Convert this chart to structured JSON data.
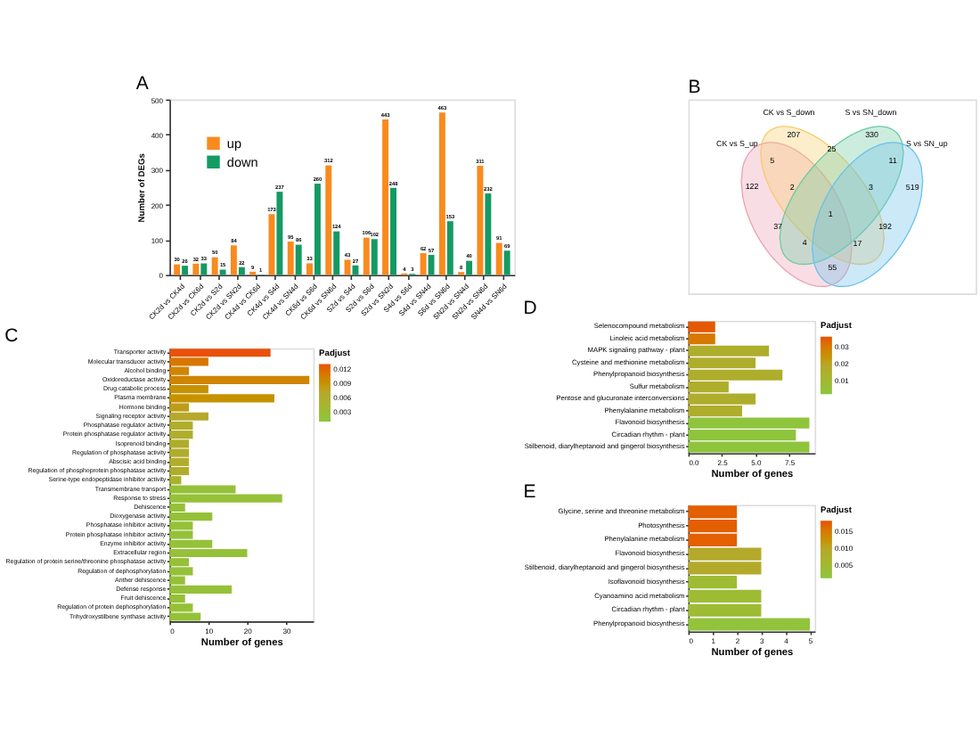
{
  "chart_data": [
    {
      "type": "bar",
      "title": "A",
      "categories": [
        "CK2d vs CK4d",
        "CK2d vs CK6d",
        "CK2d vs S2d",
        "CK2d vs SN2d",
        "CK4d vs CK6d",
        "CK4d vs S4d",
        "CK4d vs SN4d",
        "CK6d vs S6d",
        "CK6d vs SN6d",
        "S2d vs S4d",
        "S2d vs S6d",
        "S2d vs SN2d",
        "S4d vs S6d",
        "S4d vs SN4d",
        "S6d vs SN6d",
        "SN2d vs SN4d",
        "SN2d vs SN6d",
        "SN4d vs SN6d"
      ],
      "series": [
        {
          "name": "up",
          "color": "#f98a1d",
          "values": [
            30,
            32,
            50,
            84,
            9,
            173,
            95,
            33,
            312,
            43,
            106,
            443,
            4,
            62,
            463,
            8,
            311,
            91
          ]
        },
        {
          "name": "down",
          "color": "#149a63",
          "values": [
            26,
            33,
            15,
            22,
            1,
            237,
            86,
            260,
            124,
            27,
            102,
            248,
            3,
            57,
            153,
            40,
            232,
            69
          ]
        }
      ],
      "ylabel": "Number of DEGs",
      "ylim": [
        0,
        500
      ],
      "yticks": [
        0,
        100,
        200,
        300,
        400,
        500
      ],
      "data_labels": true,
      "legend": "top left",
      "grid": false
    },
    {
      "type": "bar",
      "orientation": "horizontal",
      "title": "C",
      "categories": [
        "Transporter activity",
        "Molecular transducer activity",
        "Alcohol binding",
        "Oxidoreductase activity",
        "Drug catabolic process",
        "Plasma membrane",
        "Hormone binding",
        "Signaling receptor activity",
        "Phosphatase regulator activity",
        "Protein phosphatase regulator activity",
        "Isoprenoid binding",
        "Regulation of phosphatase activity",
        "Abscisic acid binding",
        "Regulation of phosphoprotein phosphatase activity",
        "Serine-type endopeptidase inhibitor activity",
        "Transmembrane transport",
        "Response to stress",
        "Dehiscence",
        "Dioxygenase activity",
        "Phosphatase inhibitor activity",
        "Protein phosphatase inhibitor activity",
        "Enzyme inhibitor activity",
        "Extracellular region",
        "Regulation of protein serine/threonine phosphatase activity",
        "Regulation of dephosphorylation",
        "Anther dehiscence",
        "Defense response",
        "Fruit dehiscence",
        "Regulation of protein dephosphorylation",
        "Trihydroxystilbene synthase activity"
      ],
      "values": [
        26,
        10,
        5,
        36,
        10,
        27,
        5,
        10,
        6,
        6,
        5,
        5,
        5,
        5,
        3,
        17,
        29,
        4,
        11,
        6,
        6,
        11,
        20,
        5,
        6,
        4,
        16,
        4,
        6,
        8
      ],
      "cvalues": [
        0.013,
        0.011,
        0.01,
        0.01,
        0.009,
        0.009,
        0.008,
        0.007,
        0.006,
        0.006,
        0.006,
        0.006,
        0.006,
        0.006,
        0.005,
        0.002,
        0.002,
        0.002,
        0.002,
        0.002,
        0.002,
        0.002,
        0.002,
        0.002,
        0.002,
        0.002,
        0.002,
        0.002,
        0.002,
        0.002
      ],
      "xlabel": "Number of genes",
      "xlim": [
        0,
        37
      ],
      "xticks": [
        0,
        10,
        20,
        30
      ],
      "clabel": "Padjust",
      "clim": [
        0.001,
        0.013
      ],
      "cticks": [
        0.003,
        0.006,
        0.009,
        0.012
      ],
      "grid": false
    },
    {
      "type": "other",
      "title": "B",
      "annotations": [
        "CK vs S_up",
        "CK vs S_down",
        "S vs SN_down",
        "S vs SN_up",
        "207",
        "330",
        "25",
        "5",
        "11",
        "122",
        "2",
        "3",
        "519",
        "1",
        "37",
        "192",
        "4",
        "17",
        "55"
      ]
    },
    {
      "type": "bar",
      "orientation": "horizontal",
      "title": "D",
      "categories": [
        "Selenocompound metabolism",
        "Linoleic acid metabolism",
        "MAPK signaling pathway - plant",
        "Cysteine and methionine metabolism",
        "Phenylpropanoid biosynthesis",
        "Sulfur metabolism",
        "Pentose and glucuronate interconversions",
        "Phenylalanine metabolism",
        "Flavonoid biosynthesis",
        "Circadian rhythm - plant",
        "Stilbenoid, diarylheptanoid and gingerol biosynthesis"
      ],
      "values": [
        2,
        2,
        6,
        5,
        7,
        3,
        5,
        4,
        9,
        8,
        9
      ],
      "cvalues": [
        0.035,
        0.03,
        0.016,
        0.016,
        0.016,
        0.016,
        0.016,
        0.016,
        0.003,
        0.003,
        0.003
      ],
      "xlabel": "Number of genes",
      "xlim": [
        0,
        9.4
      ],
      "xticks": [
        {
          "value": 0,
          "label": "0.0"
        },
        2.5,
        {
          "value": 5,
          "label": "5.0"
        },
        7.5
      ],
      "clabel": "Padjust",
      "clim": [
        0.002,
        0.036
      ],
      "cticks": [
        0.01,
        0.02,
        0.03
      ],
      "grid": false
    },
    {
      "type": "bar",
      "orientation": "horizontal",
      "title": "E",
      "categories": [
        "Glycine, serine and threonine metabolism",
        "Photosynthesis",
        "Phenylalanine metabolism",
        "Flavonoid biosynthesis",
        "Stilbenoid, diarylheptanoid and gingerol biosynthesis",
        "Isoflavonoid biosynthesis",
        "Cyanoamino acid metabolism",
        "Circadian rhythm - plant",
        "Phenylpropanoid biosynthesis"
      ],
      "values": [
        2,
        2,
        2,
        3,
        3,
        2,
        3,
        3,
        5
      ],
      "cvalues": [
        0.017,
        0.017,
        0.017,
        0.009,
        0.009,
        0.004,
        0.004,
        0.004,
        0.002
      ],
      "xlabel": "Number of genes",
      "xlim": [
        0,
        5.2
      ],
      "xticks": [
        0,
        1,
        2,
        3,
        4,
        5
      ],
      "clabel": "Padjust",
      "clim": [
        0.001,
        0.018
      ],
      "cticks": [
        {
          "value": 0.005,
          "label": "0.005"
        },
        {
          "value": 0.01,
          "label": "0.010"
        },
        {
          "value": 0.015,
          "label": "0.015"
        }
      ],
      "grid": false
    }
  ]
}
